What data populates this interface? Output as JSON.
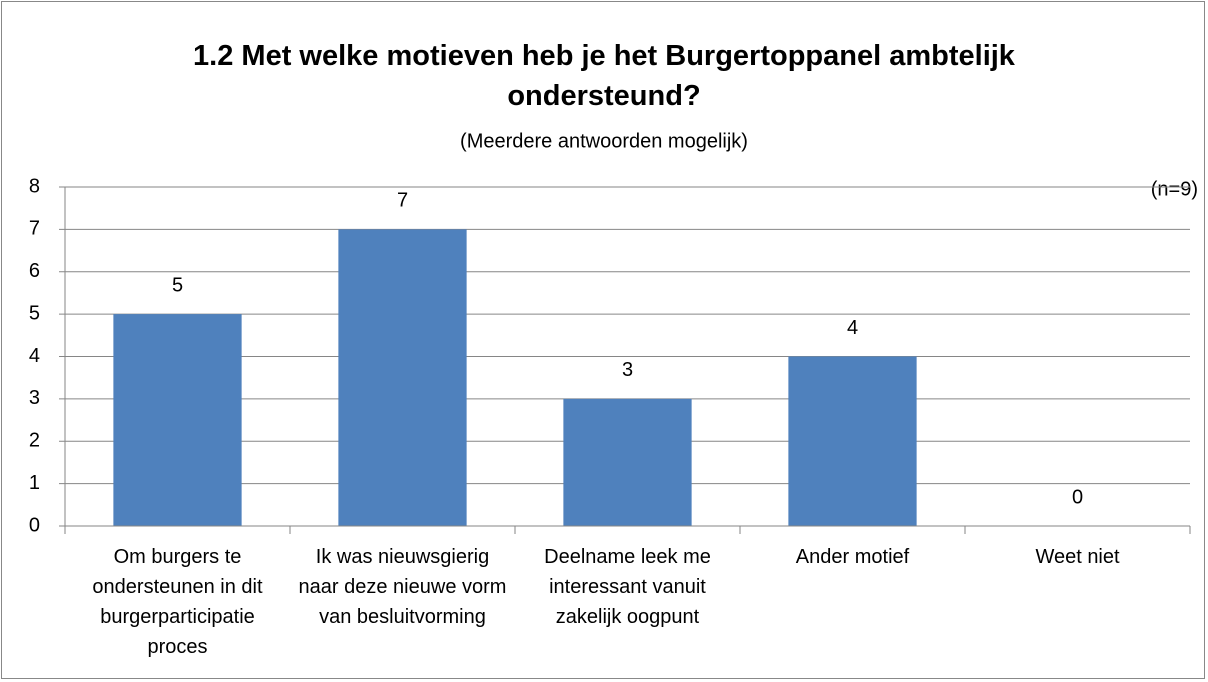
{
  "chart_data": {
    "type": "bar",
    "title": "1.2 Met welke motieven heb je het Burgertoppanel ambtelijk ondersteund?",
    "subtitle": "(Meerdere antwoorden mogelijk)",
    "annotation": "(n=9)",
    "categories": [
      "Om burgers te ondersteunen in dit burgerparticipatie proces",
      "Ik was nieuwsgierig naar deze nieuwe vorm van besluitvorming",
      "Deelname leek me interessant vanuit zakelijk oogpunt",
      "Ander motief",
      "Weet niet"
    ],
    "values": [
      5,
      7,
      3,
      4,
      0
    ],
    "color": "#4f81bd",
    "ylim": [
      0,
      8
    ],
    "yticks": [
      0,
      1,
      2,
      3,
      4,
      5,
      6,
      7,
      8
    ],
    "grid": true
  }
}
